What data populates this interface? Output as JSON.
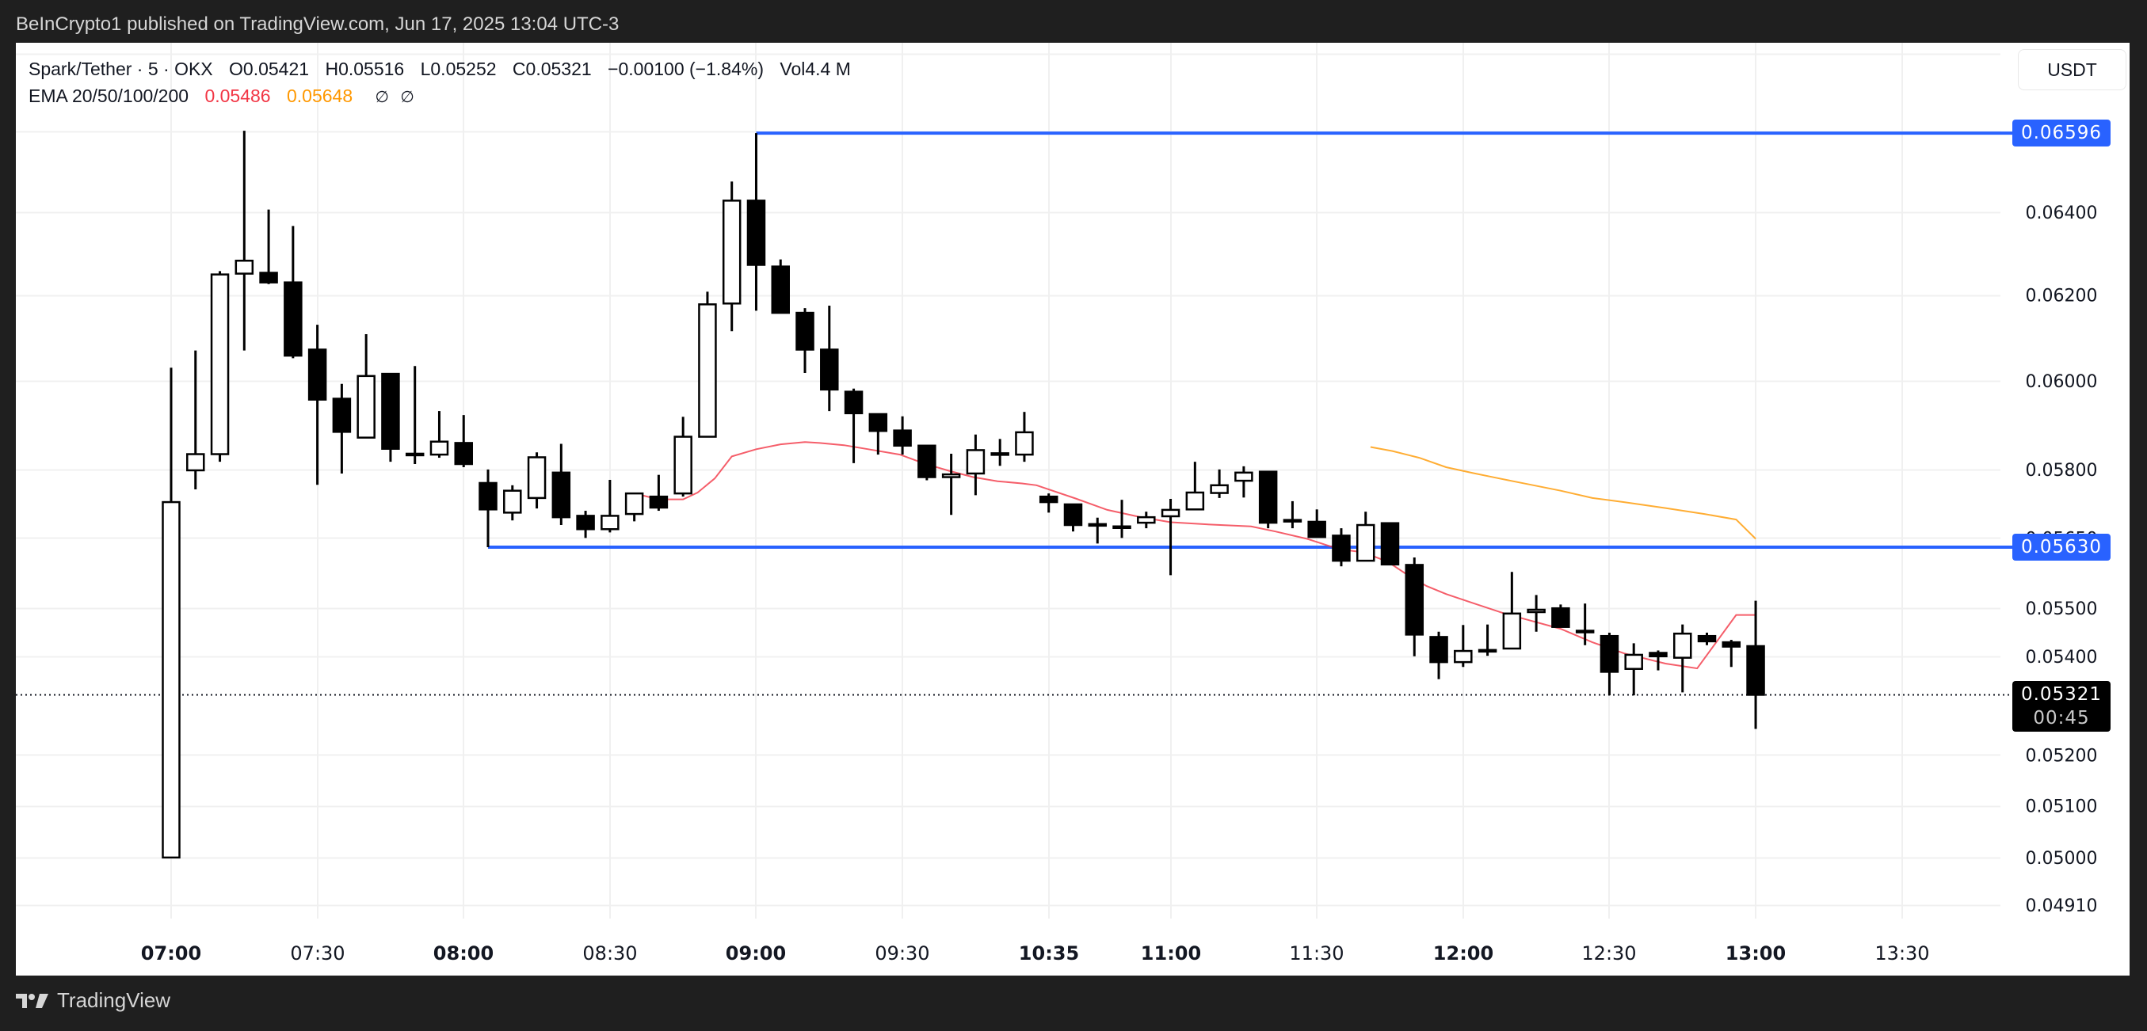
{
  "header": {
    "published_text": "BeInCrypto1 published on TradingView.com, Jun 17, 2025 13:04 UTC-3"
  },
  "legend": {
    "symbol": "Spark/Tether · 5 · OKX",
    "open": "O0.05421",
    "high": "H0.05516",
    "low": "L0.05252",
    "close": "C0.05321",
    "change": "−0.00100 (−1.84%)",
    "volume": "Vol4.4 M",
    "ema_label": "EMA 20/50/100/200",
    "ema20_value": "0.05486",
    "ema50_value": "0.05648",
    "ema100_value": "∅",
    "ema200_value": "∅"
  },
  "currency_button": "USDT",
  "footer": {
    "brand": "TradingView"
  },
  "colors": {
    "bull_fill": "#ffffff",
    "bear_fill": "#000000",
    "candle_outline": "#000000",
    "ema20": "#f23645",
    "ema50": "#ff9800",
    "level_line": "#2962ff",
    "grid": "#f0f0f0"
  },
  "price_tags": [
    {
      "name": "resistance-level-tag",
      "value": "0.06596",
      "price": 0.06596,
      "bg": "#2962ff"
    },
    {
      "name": "support-level-tag",
      "value": "0.05630",
      "price": 0.0563,
      "bg": "#2962ff"
    },
    {
      "name": "last-price-tag",
      "value": "0.05321",
      "countdown": "00:45",
      "price": 0.05321,
      "bg": "#000000"
    }
  ],
  "chart_data": {
    "type": "candlestick",
    "title": "Spark/Tether · 5 · OKX",
    "xlabel": "",
    "ylabel": "USDT",
    "scale": "log",
    "ylim": [
      0.0488,
      0.0685
    ],
    "y_ticks": [
      "0.06400",
      "0.06200",
      "0.06000",
      "0.05800",
      "0.05650",
      "0.05500",
      "0.05400",
      "0.05200",
      "0.05100",
      "0.05000",
      "0.04910"
    ],
    "y_tick_values": [
      0.064,
      0.062,
      0.06,
      0.058,
      0.0565,
      0.055,
      0.054,
      0.052,
      0.051,
      0.05,
      0.0491
    ],
    "x_ticks": [
      {
        "label": "07:00",
        "index": 0,
        "bold": true
      },
      {
        "label": "07:30",
        "index": 6,
        "bold": false
      },
      {
        "label": "08:00",
        "index": 12,
        "bold": true
      },
      {
        "label": "08:30",
        "index": 18,
        "bold": false
      },
      {
        "label": "09:00",
        "index": 24,
        "bold": true
      },
      {
        "label": "09:30",
        "index": 30,
        "bold": false
      },
      {
        "label": "10:35",
        "index": 36,
        "bold": true
      },
      {
        "label": "11:00",
        "index": 41,
        "bold": true
      },
      {
        "label": "11:30",
        "index": 47,
        "bold": false
      },
      {
        "label": "12:00",
        "index": 53,
        "bold": true
      },
      {
        "label": "12:30",
        "index": 59,
        "bold": false
      },
      {
        "label": "13:00",
        "index": 65,
        "bold": true
      },
      {
        "label": "13:30",
        "index": 71,
        "bold": false
      }
    ],
    "candles": [
      [
        0.05,
        0.0603,
        0.05,
        0.05728
      ],
      [
        0.05798,
        0.0607,
        0.05756,
        0.05834
      ],
      [
        0.05834,
        0.06257,
        0.05817,
        0.06249
      ],
      [
        0.06251,
        0.06602,
        0.0607,
        0.06282
      ],
      [
        0.06253,
        0.06406,
        0.06226,
        0.0623
      ],
      [
        0.0623,
        0.06366,
        0.06052,
        0.06058
      ],
      [
        0.06072,
        0.0613,
        0.05766,
        0.05957
      ],
      [
        0.05959,
        0.05993,
        0.05791,
        0.05884
      ],
      [
        0.05871,
        0.06108,
        0.05871,
        0.06011
      ],
      [
        0.06016,
        0.06018,
        0.05817,
        0.05846
      ],
      [
        0.05835,
        0.06034,
        0.05812,
        0.05835
      ],
      [
        0.05833,
        0.05931,
        0.05826,
        0.05862
      ],
      [
        0.05859,
        0.05922,
        0.05805,
        0.05812
      ],
      [
        0.0577,
        0.058,
        0.0563,
        0.05712
      ],
      [
        0.05705,
        0.05765,
        0.05688,
        0.05753
      ],
      [
        0.05737,
        0.05838,
        0.05714,
        0.05827
      ],
      [
        0.05793,
        0.05857,
        0.05678,
        0.05695
      ],
      [
        0.05698,
        0.05709,
        0.0565,
        0.05669
      ],
      [
        0.05669,
        0.05777,
        0.05662,
        0.05698
      ],
      [
        0.05702,
        0.05749,
        0.05686,
        0.05747
      ],
      [
        0.0574,
        0.05788,
        0.05709,
        0.05716
      ],
      [
        0.05747,
        0.05918,
        0.0574,
        0.05873
      ],
      [
        0.05873,
        0.06208,
        0.05873,
        0.06178
      ],
      [
        0.0618,
        0.06475,
        0.06115,
        0.06428
      ],
      [
        0.06428,
        0.06596,
        0.06163,
        0.06272
      ],
      [
        0.06268,
        0.06285,
        0.06158,
        0.06158
      ],
      [
        0.06158,
        0.06169,
        0.06018,
        0.06072
      ],
      [
        0.06072,
        0.06175,
        0.05931,
        0.0598
      ],
      [
        0.05975,
        0.05982,
        0.05814,
        0.05926
      ],
      [
        0.05924,
        0.05924,
        0.05833,
        0.05886
      ],
      [
        0.05887,
        0.05919,
        0.05833,
        0.05853
      ],
      [
        0.05853,
        0.05853,
        0.05776,
        0.05783
      ],
      [
        0.05783,
        0.05835,
        0.057,
        0.05789
      ],
      [
        0.05791,
        0.05878,
        0.05743,
        0.05843
      ],
      [
        0.05833,
        0.05868,
        0.05808,
        0.05836
      ],
      [
        0.05833,
        0.05929,
        0.05817,
        0.05883
      ],
      [
        0.0574,
        0.05747,
        0.05705,
        0.05728
      ],
      [
        0.05723,
        0.05723,
        0.05664,
        0.05678
      ],
      [
        0.0568,
        0.05694,
        0.05638,
        0.05678
      ],
      [
        0.05675,
        0.05733,
        0.0565,
        0.05673
      ],
      [
        0.05683,
        0.05707,
        0.05671,
        0.05695
      ],
      [
        0.05697,
        0.05735,
        0.0557,
        0.05711
      ],
      [
        0.05712,
        0.05817,
        0.05712,
        0.05749
      ],
      [
        0.05748,
        0.058,
        0.05737,
        0.05765
      ],
      [
        0.05775,
        0.05807,
        0.05738,
        0.05793
      ],
      [
        0.05795,
        0.05796,
        0.05671,
        0.05683
      ],
      [
        0.05689,
        0.0573,
        0.05671,
        0.05687
      ],
      [
        0.05685,
        0.05712,
        0.05652,
        0.05652
      ],
      [
        0.05655,
        0.05671,
        0.05589,
        0.05601
      ],
      [
        0.05601,
        0.05707,
        0.05601,
        0.05678
      ],
      [
        0.05682,
        0.05682,
        0.05593,
        0.05593
      ],
      [
        0.05592,
        0.05608,
        0.054,
        0.05445
      ],
      [
        0.0544,
        0.05451,
        0.05353,
        0.05388
      ],
      [
        0.05388,
        0.05465,
        0.05378,
        0.05411
      ],
      [
        0.05413,
        0.05466,
        0.05401,
        0.05413
      ],
      [
        0.05416,
        0.05577,
        0.05416,
        0.05489
      ],
      [
        0.05492,
        0.05528,
        0.05451,
        0.05497
      ],
      [
        0.055,
        0.05508,
        0.05461,
        0.05461
      ],
      [
        0.05453,
        0.0551,
        0.05423,
        0.05451
      ],
      [
        0.05442,
        0.05449,
        0.0532,
        0.05368
      ],
      [
        0.05374,
        0.05427,
        0.0532,
        0.05403
      ],
      [
        0.05407,
        0.05412,
        0.05371,
        0.054
      ],
      [
        0.05397,
        0.05466,
        0.05326,
        0.05447
      ],
      [
        0.05442,
        0.05449,
        0.05423,
        0.05431
      ],
      [
        0.05429,
        0.05434,
        0.05378,
        0.0542
      ],
      [
        0.05421,
        0.05516,
        0.05252,
        0.05321
      ]
    ],
    "candle_format": [
      "open",
      "high",
      "low",
      "close"
    ],
    "series": [
      {
        "name": "EMA 20",
        "color": "#f23645",
        "points": [
          [
            19.0,
            0.05747
          ],
          [
            20.0,
            0.05734
          ],
          [
            21.0,
            0.05734
          ],
          [
            21.6,
            0.05749
          ],
          [
            22.3,
            0.0578
          ],
          [
            23.0,
            0.05829
          ],
          [
            24.0,
            0.05845
          ],
          [
            25.0,
            0.05856
          ],
          [
            26.0,
            0.05861
          ],
          [
            26.6,
            0.05859
          ],
          [
            27.6,
            0.05854
          ],
          [
            28.6,
            0.05845
          ],
          [
            29.9,
            0.05833
          ],
          [
            30.9,
            0.05813
          ],
          [
            31.9,
            0.05797
          ],
          [
            32.9,
            0.05783
          ],
          [
            33.9,
            0.05774
          ],
          [
            34.9,
            0.05769
          ],
          [
            35.5,
            0.05765
          ],
          [
            37.1,
            0.05736
          ],
          [
            38.4,
            0.05711
          ],
          [
            39.7,
            0.05696
          ],
          [
            41.0,
            0.05684
          ],
          [
            42.6,
            0.05679
          ],
          [
            44.3,
            0.05675
          ],
          [
            45.3,
            0.05664
          ],
          [
            46.6,
            0.05648
          ],
          [
            47.9,
            0.05626
          ],
          [
            48.9,
            0.05619
          ],
          [
            49.9,
            0.05599
          ],
          [
            50.8,
            0.05568
          ],
          [
            51.5,
            0.05547
          ],
          [
            52.3,
            0.0553
          ],
          [
            53.4,
            0.05511
          ],
          [
            54.7,
            0.05489
          ],
          [
            55.7,
            0.05475
          ],
          [
            57.0,
            0.05457
          ],
          [
            58.3,
            0.05429
          ],
          [
            59.6,
            0.05406
          ],
          [
            61.3,
            0.05385
          ],
          [
            62.6,
            0.05375
          ],
          [
            64.2,
            0.05486
          ],
          [
            65.0,
            0.05486
          ]
        ]
      },
      {
        "name": "EMA 50",
        "color": "#ff9800",
        "points": [
          [
            49.2,
            0.0585
          ],
          [
            50.1,
            0.05841
          ],
          [
            51.2,
            0.05826
          ],
          [
            52.3,
            0.05805
          ],
          [
            53.4,
            0.05792
          ],
          [
            54.4,
            0.05781
          ],
          [
            55.7,
            0.05767
          ],
          [
            57.0,
            0.05753
          ],
          [
            58.3,
            0.05737
          ],
          [
            59.6,
            0.05728
          ],
          [
            61.3,
            0.05715
          ],
          [
            62.9,
            0.05702
          ],
          [
            64.2,
            0.0569
          ],
          [
            65.0,
            0.05648
          ]
        ]
      }
    ],
    "horizontal_levels": [
      {
        "price": 0.06596,
        "from_index": 24,
        "label": "0.06596"
      },
      {
        "price": 0.0563,
        "from_index": 13,
        "label": "0.05630"
      }
    ],
    "last_price": 0.05321
  }
}
